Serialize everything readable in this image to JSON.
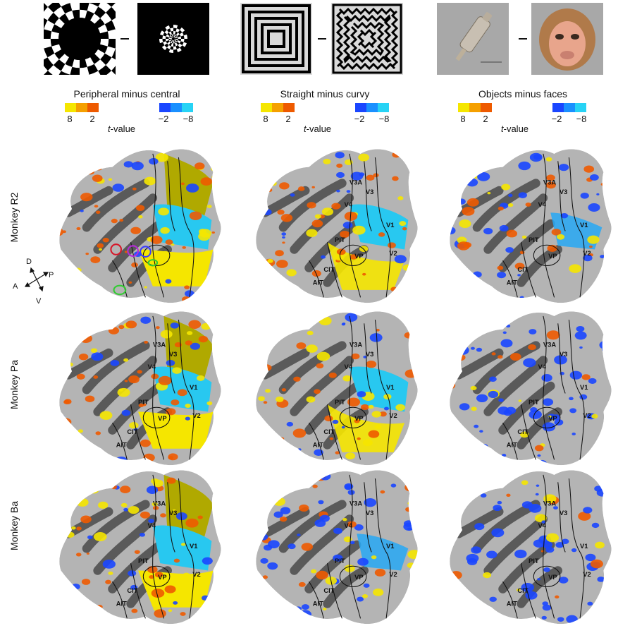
{
  "contrasts": [
    {
      "title": "Peripheral minus central",
      "pos_ticks": [
        "8",
        "2"
      ],
      "neg_ticks": [
        "−2",
        "−8"
      ],
      "tlabel_italic": "t",
      "tlabel_rest": "-value"
    },
    {
      "title": "Straight minus curvy",
      "pos_ticks": [
        "8",
        "2"
      ],
      "neg_ticks": [
        "−2",
        "−8"
      ],
      "tlabel_italic": "t",
      "tlabel_rest": "-value"
    },
    {
      "title": "Objects minus faces",
      "pos_ticks": [
        "8",
        "2"
      ],
      "neg_ticks": [
        "−2",
        "−8"
      ],
      "tlabel_italic": "t",
      "tlabel_rest": "-value"
    }
  ],
  "rows": [
    {
      "label": "Monkey R2"
    },
    {
      "label": "Monkey Pa"
    },
    {
      "label": "Monkey Ba"
    }
  ],
  "compass": {
    "D": "D",
    "V": "V",
    "A": "A",
    "P": "P"
  },
  "areas": [
    "V3A",
    "V3",
    "V4",
    "V1",
    "PIT",
    "VP",
    "V2",
    "CIT",
    "AIT"
  ],
  "colors": {
    "pos": [
      "#f5e600",
      "#f5a000",
      "#ee5a00"
    ],
    "neg": [
      "#1a46ff",
      "#1a90ff",
      "#27d3f5"
    ],
    "olive": "#b0a900",
    "cyan": "#28c8f0"
  }
}
